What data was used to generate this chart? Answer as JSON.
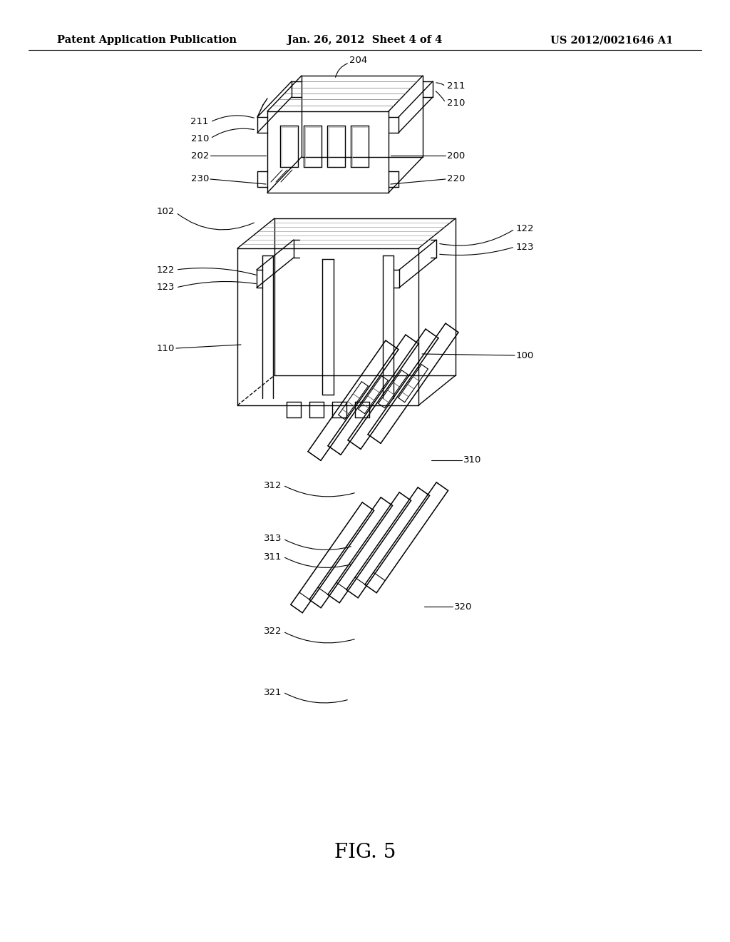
{
  "background_color": "#ffffff",
  "header_left": "Patent Application Publication",
  "header_center": "Jan. 26, 2012  Sheet 4 of 4",
  "header_right": "US 2012/0021646 A1",
  "figure_label": "FIG. 5",
  "header_font_size": 10.5,
  "figure_label_font_size": 20,
  "label_fontsize": 9.5
}
